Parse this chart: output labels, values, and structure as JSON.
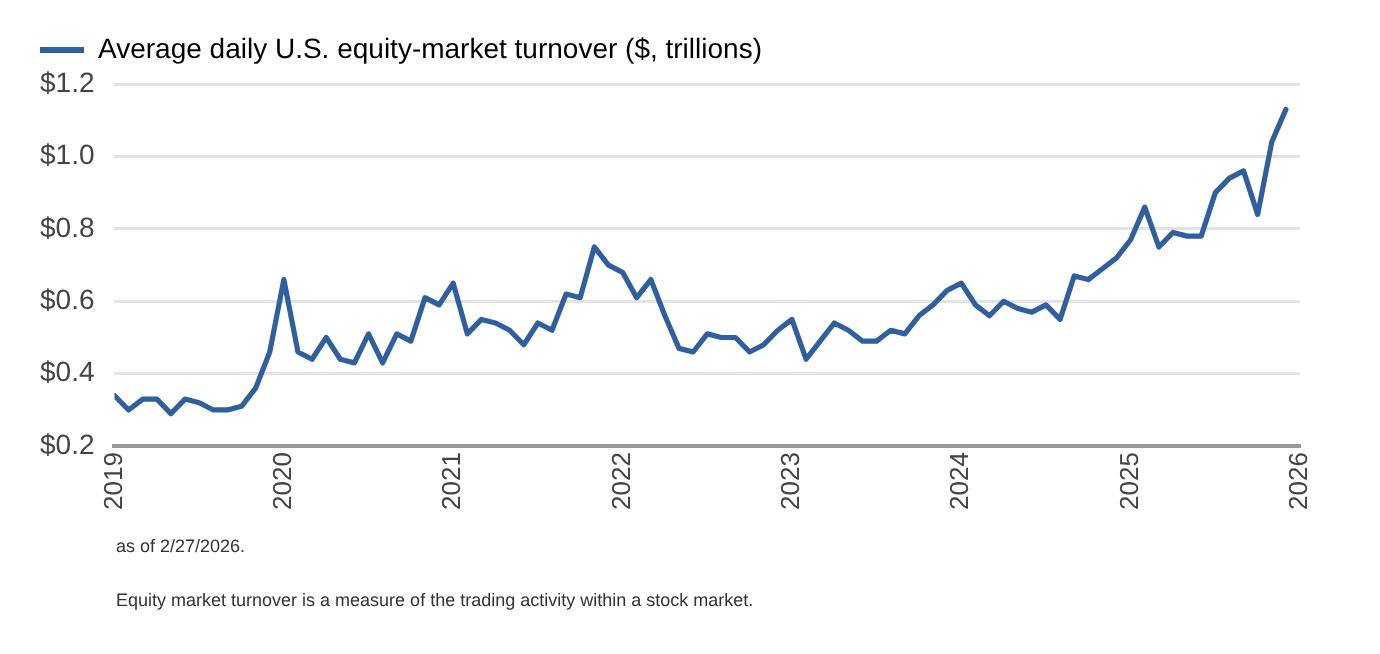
{
  "chart_data": {
    "type": "line",
    "x": [
      "2019-01",
      "2019-02",
      "2019-03",
      "2019-04",
      "2019-05",
      "2019-06",
      "2019-07",
      "2019-08",
      "2019-09",
      "2019-10",
      "2019-11",
      "2019-12",
      "2020-01",
      "2020-02",
      "2020-03",
      "2020-04",
      "2020-05",
      "2020-06",
      "2020-07",
      "2020-08",
      "2020-09",
      "2020-10",
      "2020-11",
      "2020-12",
      "2021-01",
      "2021-02",
      "2021-03",
      "2021-04",
      "2021-05",
      "2021-06",
      "2021-07",
      "2021-08",
      "2021-09",
      "2021-10",
      "2021-11",
      "2021-12",
      "2022-01",
      "2022-02",
      "2022-03",
      "2022-04",
      "2022-05",
      "2022-06",
      "2022-07",
      "2022-08",
      "2022-09",
      "2022-10",
      "2022-11",
      "2022-12",
      "2023-01",
      "2023-02",
      "2023-03",
      "2023-04",
      "2023-05",
      "2023-06",
      "2023-07",
      "2023-08",
      "2023-09",
      "2023-10",
      "2023-11",
      "2023-12",
      "2024-01",
      "2024-02",
      "2024-03",
      "2024-04",
      "2024-05",
      "2024-06",
      "2024-07",
      "2024-08",
      "2024-09",
      "2024-10",
      "2024-11",
      "2024-12",
      "2025-01",
      "2025-02",
      "2025-03",
      "2025-04",
      "2025-05",
      "2025-06",
      "2025-07",
      "2025-08",
      "2025-09",
      "2025-10",
      "2025-11",
      "2025-12"
    ],
    "series": [
      {
        "name": "Average daily U.S. equity-market turnover ($, trillions)",
        "color": "#2f5f9e",
        "values": [
          0.34,
          0.3,
          0.33,
          0.33,
          0.29,
          0.33,
          0.32,
          0.3,
          0.3,
          0.31,
          0.36,
          0.46,
          0.66,
          0.46,
          0.44,
          0.5,
          0.44,
          0.43,
          0.51,
          0.43,
          0.51,
          0.49,
          0.61,
          0.59,
          0.65,
          0.51,
          0.55,
          0.54,
          0.52,
          0.48,
          0.54,
          0.52,
          0.62,
          0.61,
          0.75,
          0.7,
          0.68,
          0.61,
          0.66,
          0.56,
          0.47,
          0.46,
          0.51,
          0.5,
          0.5,
          0.46,
          0.48,
          0.52,
          0.55,
          0.44,
          0.49,
          0.54,
          0.52,
          0.49,
          0.49,
          0.52,
          0.51,
          0.56,
          0.59,
          0.63,
          0.65,
          0.59,
          0.56,
          0.6,
          0.58,
          0.57,
          0.59,
          0.55,
          0.67,
          0.66,
          0.69,
          0.72,
          0.77,
          0.86,
          0.75,
          0.79,
          0.78,
          0.78,
          0.9,
          0.94,
          0.96,
          0.84,
          1.04,
          1.13
        ]
      }
    ],
    "xlim": [
      "2019",
      "2026"
    ],
    "xticks": [
      "2019",
      "2020",
      "2021",
      "2022",
      "2023",
      "2024",
      "2025",
      "2026"
    ],
    "ylim": [
      0.2,
      1.2
    ],
    "yticks": [
      {
        "value": 0.2,
        "label": "$0.2"
      },
      {
        "value": 0.4,
        "label": "$0.4"
      },
      {
        "value": 0.6,
        "label": "$0.6"
      },
      {
        "value": 0.8,
        "label": "$0.8"
      },
      {
        "value": 1.0,
        "label": "$1.0"
      },
      {
        "value": 1.2,
        "label": "$1.2"
      }
    ],
    "grid": "y",
    "legend": "top left",
    "marker": "none",
    "line_style": "solid",
    "annotations": [
      "as of 2/27/2026.",
      "Equity market turnover is a measure of the trading activity within a stock market."
    ]
  }
}
